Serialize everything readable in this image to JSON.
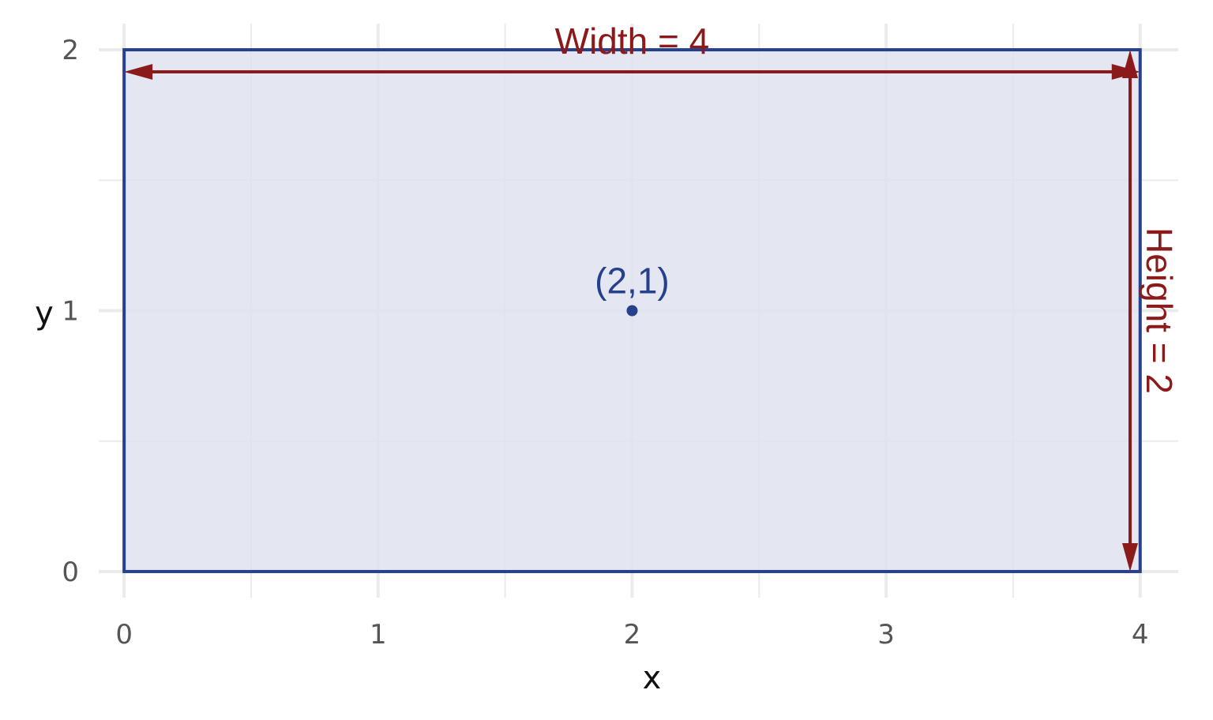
{
  "chart_data": {
    "type": "scatter",
    "xlabel": "x",
    "ylabel": "y",
    "xlim": [
      -0.1,
      4.15
    ],
    "ylim": [
      -0.1,
      2.1
    ],
    "x_ticks": [
      "0",
      "1",
      "2",
      "3",
      "4"
    ],
    "y_ticks": [
      "0",
      "1",
      "2"
    ],
    "x_tick_values": [
      0,
      1,
      2,
      3,
      4
    ],
    "y_tick_values": [
      0,
      1,
      2
    ],
    "minor_x_gridlines": [
      0.5,
      1.5,
      2.5,
      3.5
    ],
    "minor_y_gridlines": [
      0.5,
      1.5
    ],
    "grid": true,
    "rectangle": {
      "x0": 0,
      "y0": 0,
      "x1": 4,
      "y1": 2
    },
    "points": [
      {
        "x": 2,
        "y": 1,
        "label": "(2,1)"
      }
    ],
    "annotations": {
      "width_label": "Width = 4",
      "height_label": "Height = 2"
    },
    "colors": {
      "rect_stroke": "#27408b",
      "rect_fill": "#dfe3ee",
      "point": "#27408b",
      "annotation": "#8b1a1a",
      "grid": "#ebebeb"
    }
  }
}
